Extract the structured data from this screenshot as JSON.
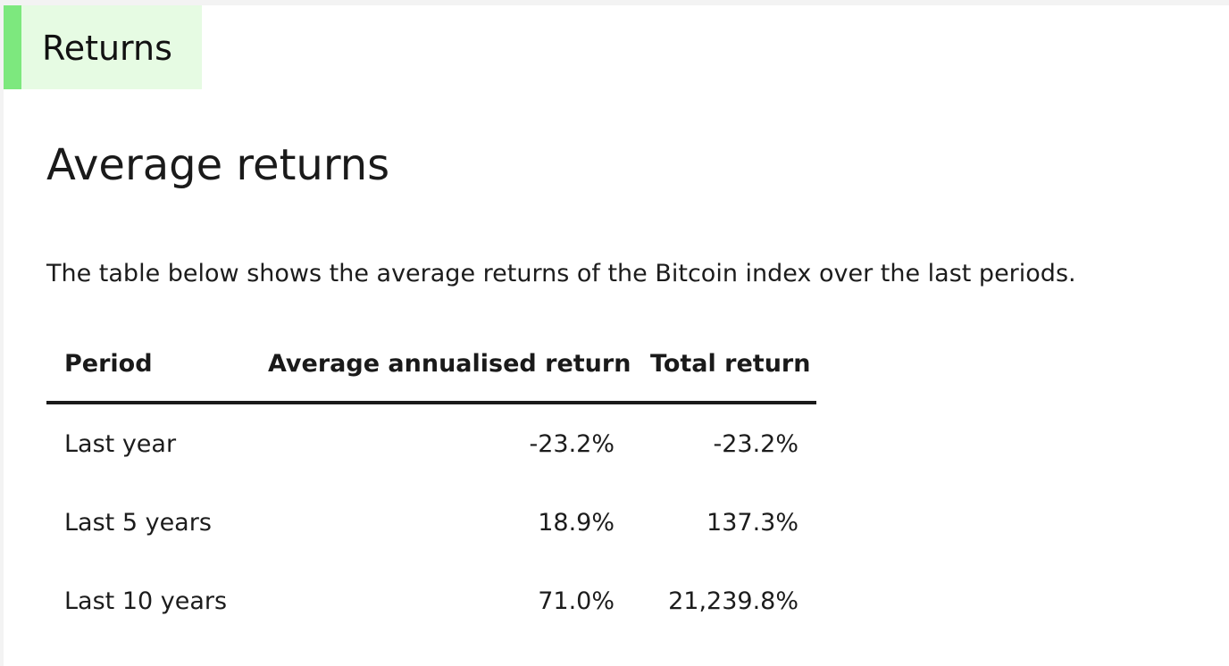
{
  "section": {
    "label": "Returns",
    "accent_color": "#7de87e",
    "background_color": "#e6fbe3"
  },
  "content": {
    "title": "Average returns",
    "intro": "The table below shows the average returns of the Bitcoin index over the last periods."
  },
  "table": {
    "headers": [
      "Period",
      "Average annualised return",
      "Total return"
    ],
    "rows": [
      {
        "period": "Last year",
        "avg_annualised": "-23.2%",
        "total": "-23.2%"
      },
      {
        "period": "Last 5 years",
        "avg_annualised": "18.9%",
        "total": "137.3%"
      },
      {
        "period": "Last 10 years",
        "avg_annualised": "71.0%",
        "total": "21,239.8%"
      }
    ]
  }
}
